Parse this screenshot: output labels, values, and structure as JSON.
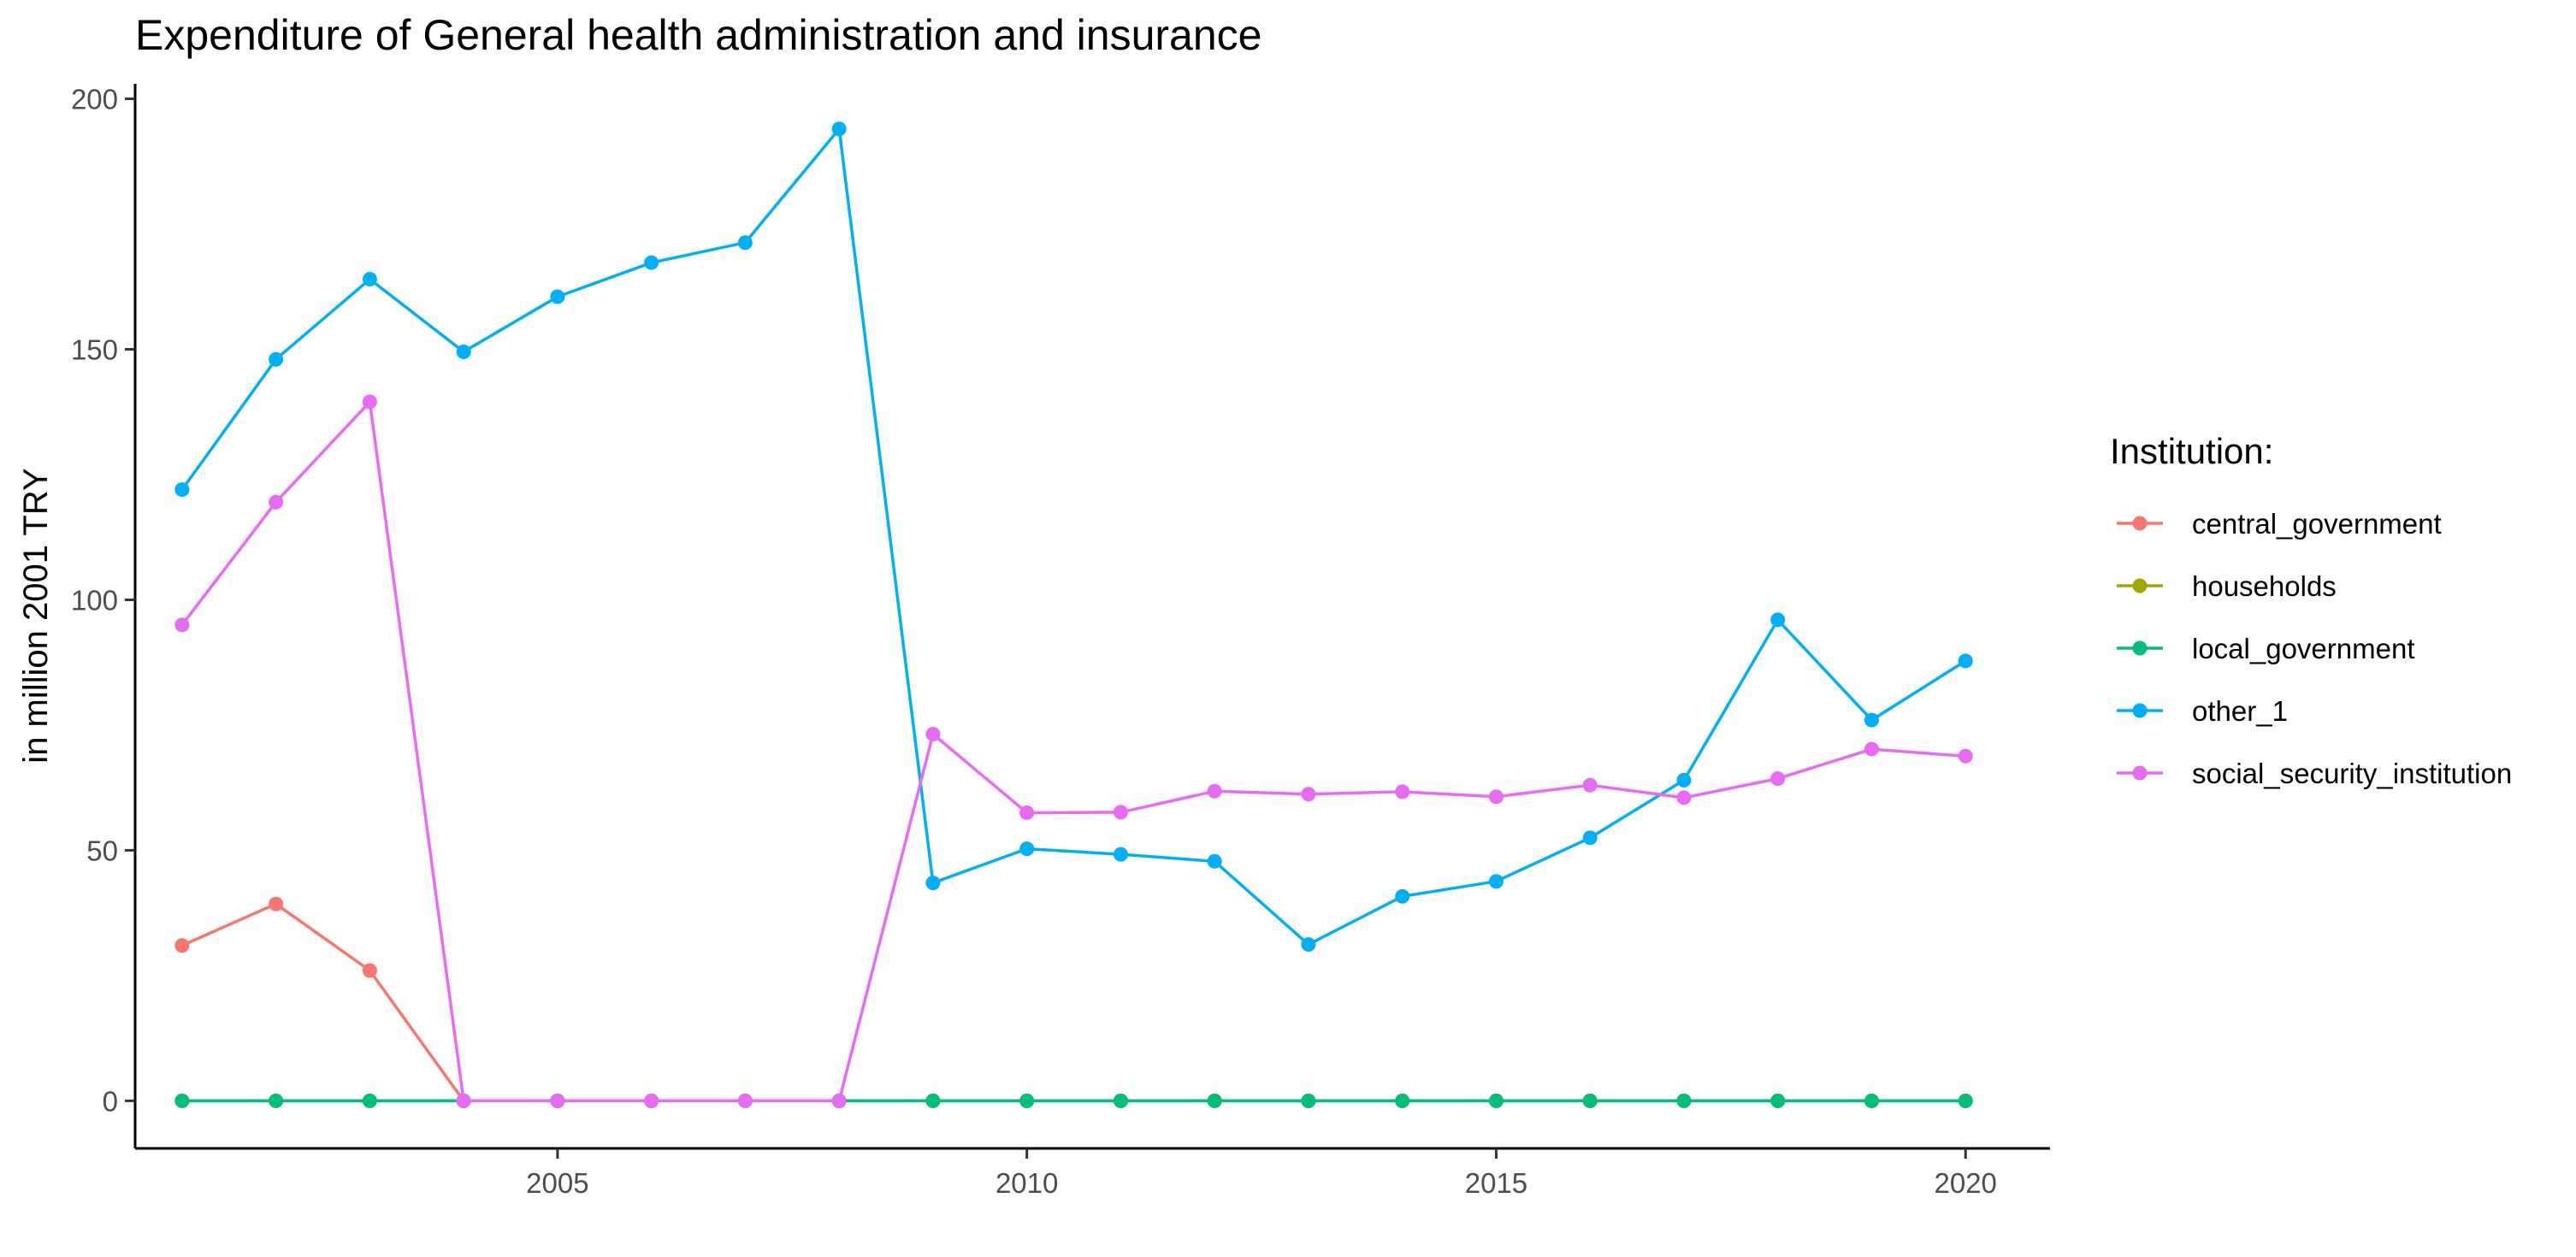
{
  "chart_data": {
    "type": "line",
    "title": "Expenditure of General health administration and insurance",
    "xlabel": "",
    "ylabel": "in million 2001 TRY",
    "xlim": [
      2000.5,
      2020.9
    ],
    "ylim": [
      -9.5,
      203
    ],
    "x_ticks": [
      2005,
      2010,
      2015,
      2020
    ],
    "y_ticks": [
      0,
      50,
      100,
      150,
      200
    ],
    "x": [
      2001,
      2002,
      2003,
      2004,
      2005,
      2006,
      2007,
      2008,
      2009,
      2010,
      2011,
      2012,
      2013,
      2014,
      2015,
      2016,
      2017,
      2018,
      2019,
      2020
    ],
    "grid": false,
    "legend": {
      "title": "Institution:",
      "position": "right"
    },
    "series": [
      {
        "name": "central_government",
        "color": "#F8766D",
        "values": [
          31,
          39.3,
          26,
          0,
          0,
          0,
          0,
          0,
          0,
          0,
          0,
          0,
          0,
          0,
          0,
          0,
          0,
          0,
          0,
          0
        ]
      },
      {
        "name": "households",
        "color": "#A3A500",
        "values": [
          0,
          0,
          0,
          0,
          0,
          0,
          0,
          0,
          0,
          0,
          0,
          0,
          0,
          0,
          0,
          0,
          0,
          0,
          0,
          0
        ]
      },
      {
        "name": "local_government",
        "color": "#00BF7D",
        "values": [
          0,
          0,
          0,
          0,
          0,
          0,
          0,
          0,
          0,
          0,
          0,
          0,
          0,
          0,
          0,
          0,
          0,
          0,
          0,
          0
        ]
      },
      {
        "name": "other_1",
        "color": "#00B0F6",
        "values": [
          122,
          148,
          164,
          149.5,
          160.5,
          167.3,
          171.3,
          194,
          43.5,
          50.3,
          49.2,
          47.8,
          31.2,
          40.8,
          43.8,
          52.5,
          64,
          96,
          76,
          87.8
        ]
      },
      {
        "name": "social_security_institution",
        "color": "#E76BF3",
        "values": [
          95,
          119.5,
          139.5,
          0,
          0,
          0,
          0,
          0,
          73.2,
          57.5,
          57.6,
          61.8,
          61.2,
          61.7,
          60.7,
          63,
          60.5,
          64.3,
          70.2,
          68.8
        ]
      }
    ]
  }
}
